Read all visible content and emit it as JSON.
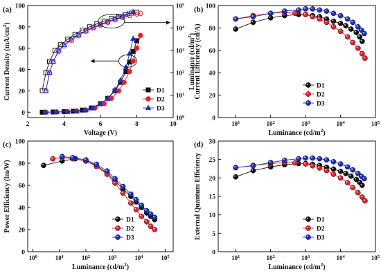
{
  "chart_data": [
    {
      "panel_label": "(a)",
      "type": "scatter",
      "xlabel": "Voltage (V)",
      "ylabel": "Current Density (mA/cm²)",
      "y2label": "Luminance (cd/m²)",
      "xlim": [
        2,
        10
      ],
      "ylim": [
        -5,
        100
      ],
      "y2_log": true,
      "y2lim_exp": [
        0,
        5
      ],
      "xticks": [
        "2",
        "4",
        "6",
        "8",
        "10"
      ],
      "yticks": [
        "0",
        "20",
        "40",
        "60",
        "80",
        "100"
      ],
      "y2ticks": [
        {
          "base": "10",
          "exp": "0",
          "v": 0
        },
        {
          "base": "10",
          "exp": "1",
          "v": 1
        },
        {
          "base": "10",
          "exp": "2",
          "v": 2
        },
        {
          "base": "10",
          "exp": "3",
          "v": 3
        },
        {
          "base": "10",
          "exp": "4",
          "v": 4
        },
        {
          "base": "10",
          "exp": "5",
          "v": 5
        }
      ],
      "legend": [
        "D1",
        "D2",
        "D3"
      ],
      "legend_position": "right",
      "series": [
        {
          "name": "D1",
          "color": "#111111",
          "marker": "square",
          "x": [
            2.8,
            3.4,
            4.0,
            4.5,
            5.0,
            5.5,
            6.0,
            6.4,
            6.8,
            7.1,
            7.4,
            7.6,
            7.8,
            8.0
          ],
          "y": [
            0,
            0.2,
            0.5,
            1,
            2,
            4,
            8,
            13,
            20,
            28,
            38,
            47,
            57,
            67
          ]
        },
        {
          "name": "D2",
          "color": "#e8202a",
          "marker": "circle",
          "x": [
            3.0,
            3.6,
            4.2,
            4.7,
            5.2,
            5.7,
            6.2,
            6.6,
            7.0,
            7.3,
            7.6,
            7.8,
            8.0,
            8.2
          ],
          "y": [
            0,
            0.2,
            0.5,
            1,
            2,
            4,
            8,
            13,
            20,
            28,
            38,
            48,
            60,
            72
          ]
        },
        {
          "name": "D3",
          "color": "#1c2fc8",
          "marker": "triangle",
          "x": [
            3.0,
            3.6,
            4.2,
            4.7,
            5.2,
            5.6,
            6.0,
            6.4,
            6.8,
            7.1,
            7.4,
            7.6,
            7.8
          ],
          "y": [
            0,
            0.2,
            0.5,
            1,
            2,
            4,
            8,
            13,
            21,
            30,
            42,
            55,
            69
          ]
        },
        {
          "name": "D1",
          "color": "#111111",
          "marker": "open-square",
          "axis": "y2",
          "x": [
            2.8,
            3.0,
            3.2,
            3.5,
            3.8,
            4.2,
            4.6,
            5.0,
            5.4,
            5.8,
            6.2,
            6.6,
            7.0,
            7.4,
            7.7,
            8.0
          ],
          "y": [
            1.2,
            2.0,
            2.5,
            3.0,
            3.25,
            3.5,
            3.72,
            3.9,
            4.05,
            4.18,
            4.3,
            4.42,
            4.52,
            4.6,
            4.66,
            4.7
          ]
        },
        {
          "name": "D2",
          "color": "#e8202a",
          "marker": "open-circle",
          "axis": "y2",
          "x": [
            3.0,
            3.2,
            3.4,
            3.7,
            4.0,
            4.4,
            4.8,
            5.2,
            5.6,
            6.0,
            6.4,
            6.8,
            7.2,
            7.6,
            8.0,
            8.2
          ],
          "y": [
            1.2,
            2.0,
            2.5,
            2.95,
            3.2,
            3.45,
            3.65,
            3.85,
            4.0,
            4.13,
            4.25,
            4.36,
            4.46,
            4.55,
            4.62,
            4.65
          ]
        },
        {
          "name": "D3",
          "color": "#1c2fc8",
          "marker": "open-triangle",
          "axis": "y2",
          "x": [
            3.0,
            3.2,
            3.4,
            3.7,
            4.0,
            4.4,
            4.8,
            5.2,
            5.6,
            6.0,
            6.4,
            6.8,
            7.2,
            7.5,
            7.8
          ],
          "y": [
            1.2,
            2.0,
            2.5,
            3.0,
            3.25,
            3.5,
            3.7,
            3.88,
            4.03,
            4.16,
            4.28,
            4.4,
            4.52,
            4.62,
            4.72
          ]
        }
      ]
    },
    {
      "panel_label": "(b)",
      "type": "line",
      "xlabel": "Luminance (cd/m²)",
      "ylabel": "Current Efficiency (cd/A)",
      "x_log": true,
      "xlim_exp": [
        0.5,
        5
      ],
      "ylim": [
        0,
        100
      ],
      "xticks": [
        {
          "base": "10",
          "exp": "1",
          "v": 1
        },
        {
          "base": "10",
          "exp": "2",
          "v": 2
        },
        {
          "base": "10",
          "exp": "3",
          "v": 3
        },
        {
          "base": "10",
          "exp": "4",
          "v": 4
        },
        {
          "base": "10",
          "exp": "5",
          "v": 5
        }
      ],
      "yticks": [
        "0",
        "20",
        "40",
        "60",
        "80",
        "100"
      ],
      "legend": [
        "D1",
        "D2",
        "D3"
      ],
      "legend_position": "bottom-left",
      "series": [
        {
          "name": "D1",
          "color": "#111111",
          "x": [
            1.0,
            1.5,
            2.0,
            2.4,
            2.8,
            3.0,
            3.2,
            3.4,
            3.6,
            3.8,
            4.0,
            4.15,
            4.3,
            4.45,
            4.55,
            4.62
          ],
          "y": [
            79,
            85,
            89,
            91,
            92,
            92,
            91,
            90,
            88,
            86,
            84,
            82,
            79,
            76,
            72,
            68
          ]
        },
        {
          "name": "D2",
          "color": "#e8202a",
          "x": [
            1.0,
            1.5,
            2.0,
            2.4,
            2.7,
            3.0,
            3.2,
            3.4,
            3.6,
            3.8,
            4.0,
            4.2,
            4.35,
            4.5,
            4.62,
            4.7
          ],
          "y": [
            88,
            91,
            93,
            94,
            93,
            92,
            90,
            88,
            85,
            81,
            77,
            72,
            67,
            62,
            57,
            53
          ]
        },
        {
          "name": "D3",
          "color": "#1c2fc8",
          "x": [
            1.0,
            1.5,
            2.0,
            2.4,
            2.8,
            3.0,
            3.2,
            3.4,
            3.6,
            3.8,
            4.0,
            4.2,
            4.35,
            4.5,
            4.6,
            4.68
          ],
          "y": [
            88,
            90,
            93,
            95,
            96,
            97,
            97,
            96,
            95,
            93,
            91,
            88,
            85,
            81,
            78,
            75
          ]
        }
      ]
    },
    {
      "panel_label": "(c)",
      "type": "line",
      "xlabel": "Luminance (cd/m²)",
      "ylabel": "Power Efficiency (lm/W)",
      "x_log": true,
      "xlim_exp": [
        -0.2,
        5.3
      ],
      "ylim": [
        0,
        100
      ],
      "xticks": [
        {
          "base": "10",
          "exp": "0",
          "v": 0
        },
        {
          "base": "10",
          "exp": "1",
          "v": 1
        },
        {
          "base": "10",
          "exp": "2",
          "v": 2
        },
        {
          "base": "10",
          "exp": "3",
          "v": 3
        },
        {
          "base": "10",
          "exp": "4",
          "v": 4
        },
        {
          "base": "10",
          "exp": "5",
          "v": 5
        }
      ],
      "yticks": [
        "0",
        "20",
        "40",
        "60",
        "80",
        "100"
      ],
      "legend": [
        "D1",
        "D2",
        "D3"
      ],
      "legend_position": "bottom-left",
      "series": [
        {
          "name": "D1",
          "color": "#111111",
          "x": [
            0.4,
            1.1,
            1.6,
            2.0,
            2.4,
            2.8,
            3.1,
            3.4,
            3.7,
            3.9,
            4.1,
            4.3,
            4.45,
            4.6
          ],
          "y": [
            78,
            82,
            84,
            82,
            78,
            71,
            64,
            57,
            50,
            45,
            40,
            35,
            32,
            29
          ]
        },
        {
          "name": "D2",
          "color": "#e8202a",
          "x": [
            0.75,
            1.1,
            1.5,
            2.0,
            2.4,
            2.8,
            3.1,
            3.4,
            3.7,
            3.9,
            4.1,
            4.3,
            4.45,
            4.6
          ],
          "y": [
            84,
            85,
            84,
            82,
            77,
            70,
            62,
            53,
            44,
            38,
            32,
            27,
            23,
            20
          ]
        },
        {
          "name": "D3",
          "color": "#1c2fc8",
          "x": [
            1.1,
            1.5,
            2.0,
            2.4,
            2.8,
            3.1,
            3.4,
            3.7,
            3.9,
            4.1,
            4.3,
            4.45,
            4.6
          ],
          "y": [
            86,
            85,
            83,
            79,
            73,
            66,
            59,
            52,
            47,
            42,
            37,
            34,
            31
          ]
        }
      ]
    },
    {
      "panel_label": "(d)",
      "type": "line",
      "xlabel": "Luminance (cd/m²)",
      "ylabel": "External Quantum Efficiency",
      "x_log": true,
      "xlim_exp": [
        0.5,
        5
      ],
      "ylim": [
        0,
        30
      ],
      "xticks": [
        {
          "base": "10",
          "exp": "1",
          "v": 1
        },
        {
          "base": "10",
          "exp": "2",
          "v": 2
        },
        {
          "base": "10",
          "exp": "3",
          "v": 3
        },
        {
          "base": "10",
          "exp": "4",
          "v": 4
        },
        {
          "base": "10",
          "exp": "5",
          "v": 5
        }
      ],
      "yticks": [
        "0",
        "5",
        "10",
        "15",
        "20",
        "25",
        "30"
      ],
      "legend": [
        "D1",
        "D2",
        "D3"
      ],
      "legend_position": "bottom-left",
      "series": [
        {
          "name": "D1",
          "color": "#111111",
          "x": [
            1.0,
            1.5,
            2.0,
            2.4,
            2.8,
            3.0,
            3.2,
            3.4,
            3.6,
            3.8,
            4.0,
            4.15,
            4.3,
            4.45,
            4.55,
            4.62
          ],
          "y": [
            20.3,
            22.0,
            23.0,
            23.6,
            23.9,
            23.9,
            23.7,
            23.4,
            22.9,
            22.4,
            21.8,
            21.2,
            20.5,
            19.6,
            18.8,
            18.0
          ]
        },
        {
          "name": "D2",
          "color": "#e8202a",
          "x": [
            1.0,
            1.5,
            2.0,
            2.4,
            2.7,
            3.0,
            3.2,
            3.4,
            3.6,
            3.8,
            4.0,
            4.2,
            4.35,
            4.5,
            4.62,
            4.7
          ],
          "y": [
            22.8,
            23.4,
            23.9,
            24.2,
            24.1,
            23.8,
            23.3,
            22.7,
            22.0,
            21.0,
            20.0,
            18.7,
            17.4,
            16.0,
            14.8,
            13.8
          ]
        },
        {
          "name": "D3",
          "color": "#1c2fc8",
          "x": [
            1.0,
            1.5,
            2.0,
            2.4,
            2.8,
            3.0,
            3.2,
            3.4,
            3.6,
            3.8,
            4.0,
            4.2,
            4.35,
            4.5,
            4.6,
            4.68
          ],
          "y": [
            22.8,
            23.3,
            24.2,
            24.8,
            25.2,
            25.4,
            25.4,
            25.2,
            24.9,
            24.4,
            23.8,
            23.0,
            22.2,
            21.2,
            20.4,
            19.8
          ]
        }
      ]
    }
  ]
}
